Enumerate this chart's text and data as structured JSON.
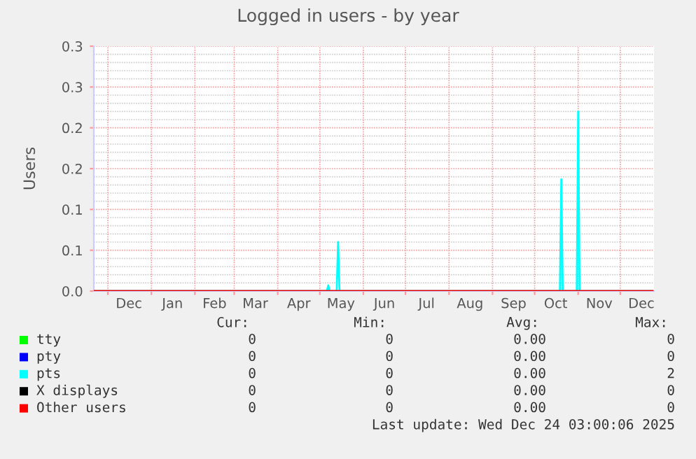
{
  "chart_data": {
    "type": "line",
    "title": "Logged in users - by year",
    "ylabel": "Users",
    "xlim": [
      "2024-11-21",
      "2025-12-25"
    ],
    "ylim": [
      0,
      0.3
    ],
    "yticks": [
      {
        "value": 0,
        "label": "0.0"
      },
      {
        "value": 0.05,
        "label": "0.1"
      },
      {
        "value": 0.1,
        "label": "0.1"
      },
      {
        "value": 0.15,
        "label": "0.2"
      },
      {
        "value": 0.2,
        "label": "0.2"
      },
      {
        "value": 0.25,
        "label": "0.3"
      },
      {
        "value": 0.3,
        "label": "0.3"
      }
    ],
    "xticks": [
      {
        "value": "2024-12-01",
        "label": null
      },
      {
        "value": "2024-12-16",
        "label": "Dec"
      },
      {
        "value": "2025-01-01",
        "label": null
      },
      {
        "value": "2025-01-16",
        "label": "Jan"
      },
      {
        "value": "2025-02-01",
        "label": null
      },
      {
        "value": "2025-02-15",
        "label": "Feb"
      },
      {
        "value": "2025-03-01",
        "label": null
      },
      {
        "value": "2025-03-16",
        "label": "Mar"
      },
      {
        "value": "2025-04-01",
        "label": null
      },
      {
        "value": "2025-04-16",
        "label": "Apr"
      },
      {
        "value": "2025-05-01",
        "label": null
      },
      {
        "value": "2025-05-16",
        "label": "May"
      },
      {
        "value": "2025-06-01",
        "label": null
      },
      {
        "value": "2025-06-16",
        "label": "Jun"
      },
      {
        "value": "2025-07-01",
        "label": null
      },
      {
        "value": "2025-07-16",
        "label": "Jul"
      },
      {
        "value": "2025-08-01",
        "label": null
      },
      {
        "value": "2025-08-16",
        "label": "Aug"
      },
      {
        "value": "2025-09-01",
        "label": null
      },
      {
        "value": "2025-09-16",
        "label": "Sep"
      },
      {
        "value": "2025-10-01",
        "label": null
      },
      {
        "value": "2025-10-16",
        "label": "Oct"
      },
      {
        "value": "2025-11-01",
        "label": null
      },
      {
        "value": "2025-11-16",
        "label": "Nov"
      },
      {
        "value": "2025-12-01",
        "label": null
      },
      {
        "value": "2025-12-16",
        "label": "Dec"
      }
    ],
    "grid": true,
    "legend": "bottom",
    "series": [
      {
        "name": "tty",
        "color": "#00ff00"
      },
      {
        "name": "pty",
        "color": "#0000ff"
      },
      {
        "name": "pts",
        "color": "#00ffff",
        "x": [
          "2024-11-21",
          "2025-05-06",
          "2025-05-07",
          "2025-05-08",
          "2025-05-13",
          "2025-05-14",
          "2025-05-15",
          "2025-10-19",
          "2025-10-20",
          "2025-10-21",
          "2025-10-31",
          "2025-11-01",
          "2025-11-02",
          "2025-12-24"
        ],
        "values": [
          0,
          0,
          0.007,
          0,
          0,
          0.06,
          0,
          0,
          0.137,
          0,
          0,
          0.22,
          0,
          0
        ]
      },
      {
        "name": "X displays",
        "color": "#000000"
      },
      {
        "name": "Other users",
        "color": "#ff0000",
        "x": [
          "2024-11-21",
          "2025-12-24"
        ],
        "values": [
          0,
          0
        ]
      }
    ],
    "annotations": [
      "Cur:",
      "Min:",
      "Avg:",
      "Max:",
      "0",
      "0",
      "0.00",
      "0",
      "0",
      "0",
      "0.00",
      "0",
      "0",
      "0",
      "0.00",
      "2",
      "0",
      "0",
      "0.00",
      "0",
      "0",
      "0",
      "0.00",
      "0",
      "Last update: Wed Dec 24 03:00:06 2025"
    ]
  }
}
